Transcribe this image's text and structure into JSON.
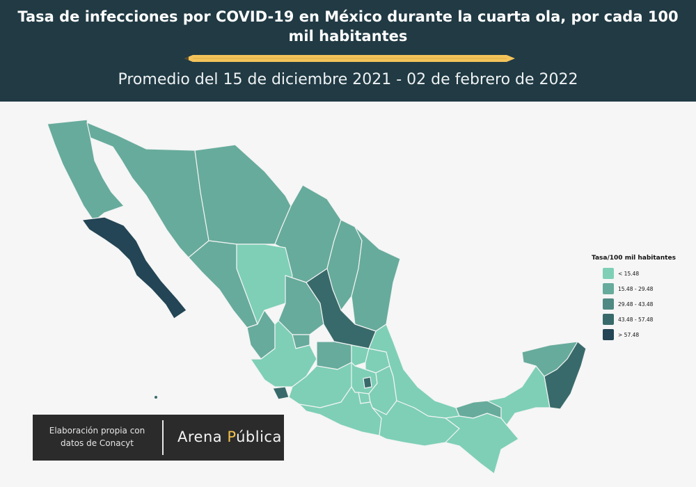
{
  "header": {
    "title": "Tasa de infecciones por COVID-19 en México durante la cuarta ola, por cada 100 mil habitantes",
    "subtitle": "Promedio del 15 de diciembre 2021 - 02 de febrero de 2022"
  },
  "legend": {
    "title": "Tasa/100 mil habitantes",
    "items": [
      {
        "label": "< 15.48",
        "color": "#7ecfb6"
      },
      {
        "label": "15.48 - 29.48",
        "color": "#67ab9c"
      },
      {
        "label": "29.48 - 43.48",
        "color": "#4f8983"
      },
      {
        "label": "43.48 - 57.48",
        "color": "#396a6b"
      },
      {
        "label": "> 57.48",
        "color": "#234555"
      }
    ]
  },
  "credit": {
    "text": "Elaboración propia con datos de Conacyt",
    "brand_a": "Arena ",
    "brand_accent": "P",
    "brand_b": "ública"
  },
  "colors": {
    "header_bg": "#213a44",
    "page_bg": "#f6f6f6",
    "pencil": "#f3c35a"
  }
}
